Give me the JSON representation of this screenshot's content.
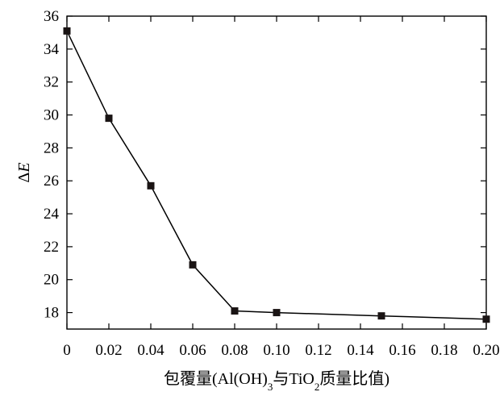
{
  "chart_data": {
    "type": "line",
    "title": "",
    "xlabel": {
      "parts": [
        {
          "text": "包覆量(Al(OH)",
          "style": "normal"
        },
        {
          "text": "3",
          "style": "sub"
        },
        {
          "text": "与TiO",
          "style": "normal"
        },
        {
          "text": "2",
          "style": "sub"
        },
        {
          "text": "质量比值)",
          "style": "normal"
        }
      ]
    },
    "ylabel": {
      "parts": [
        {
          "text": "Δ",
          "style": "normal"
        },
        {
          "text": "E",
          "style": "italic"
        }
      ]
    },
    "xlim": [
      0,
      0.2
    ],
    "ylim": [
      17,
      36
    ],
    "x_ticks": [
      {
        "value": 0,
        "label": "0"
      },
      {
        "value": 0.02,
        "label": "0.02"
      },
      {
        "value": 0.04,
        "label": "0.04"
      },
      {
        "value": 0.06,
        "label": "0.06"
      },
      {
        "value": 0.08,
        "label": "0.08"
      },
      {
        "value": 0.1,
        "label": "0.10"
      },
      {
        "value": 0.12,
        "label": "0.12"
      },
      {
        "value": 0.14,
        "label": "0.14"
      },
      {
        "value": 0.16,
        "label": "0.16"
      },
      {
        "value": 0.18,
        "label": "0.18"
      },
      {
        "value": 0.2,
        "label": "0.20"
      }
    ],
    "y_ticks": [
      18,
      20,
      22,
      24,
      26,
      28,
      30,
      32,
      34,
      36
    ],
    "grid": false,
    "legend": "none",
    "marker": "square",
    "line_color": "#000000",
    "marker_color": "#1a1414",
    "series": [
      {
        "x": [
          0,
          0.02,
          0.04,
          0.06,
          0.08,
          0.1,
          0.15,
          0.2
        ],
        "y": [
          35.1,
          29.8,
          25.7,
          20.9,
          18.1,
          18.0,
          17.8,
          17.6
        ]
      }
    ]
  }
}
